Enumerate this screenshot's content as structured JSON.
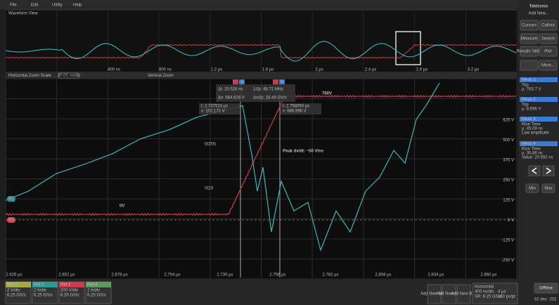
{
  "menu": [
    "File",
    "Edit",
    "Utility",
    "Help"
  ],
  "brand": "Tektronix",
  "overview": {
    "title": "Waveform View",
    "x_labels": [
      "400 ns",
      "800 ns",
      "1.2 µs",
      "1.6 µs",
      "2 µs",
      "2.4 µs",
      "2.8 µs",
      "3.2 µs"
    ]
  },
  "zoom_bar": {
    "scale_label": "Horizontal Zoom Scale",
    "scale_value": "20.00 ns/div",
    "vertical_label": "Vertical Zoom"
  },
  "plot": {
    "x_labels": [
      "2.626 µs",
      "2.652 µs",
      "2.678 µs",
      "2.704 µs",
      "2.730 µs",
      "2.756 µs",
      "2.782 µs",
      "2.808 µs",
      "2.834 µs",
      "2.860 µs"
    ],
    "y_labels": [
      "625 V",
      "500 V",
      "375 V",
      "250 V",
      "125 V",
      "0 V",
      "-125 V",
      "-250 V"
    ],
    "annotations": {
      "top": "760V",
      "current": "I(IZM)",
      "dvdt": "Peak dv/dt: ~50 V/ns",
      "vds": "VDS",
      "zero": "0V"
    },
    "cursor_a": "a",
    "cursor_b": "b",
    "readout": [
      "Δt: 20.526 ns",
      "1/Δt: 48.72 MHz",
      "Δv: 584.826 V",
      "Δv/Δt: 28.49 GV/s"
    ],
    "cursor_a_readout": [
      "t: 2.737524 µs",
      "v: 102.172 V"
    ],
    "cursor_b_readout": [
      "t: 2.758050 µs",
      "v: 686.998 V"
    ],
    "markers": [
      "R3",
      "R2"
    ]
  },
  "side": {
    "title": "Add New...",
    "buttons": [
      "Cursors",
      "Callout",
      "Measure",
      "Search",
      "Results Table",
      "Plot",
      "More..."
    ],
    "meas": [
      {
        "title": "Meas 1",
        "name": "Top",
        "value": "µ: 763.7 V"
      },
      {
        "title": "Meas 2",
        "name": "Top",
        "value": "µ: 8.596 V"
      },
      {
        "title": "Meas 3",
        "name": "Rise Time",
        "value": "µ: 45.09 ns",
        "note": "Low amplitude"
      },
      {
        "title": "Meas 4",
        "name": "Rise Time",
        "value": "µ: 35.86 ns",
        "note": "Value: 20.592 ns"
      }
    ],
    "nav": [
      "Min",
      "Max"
    ]
  },
  "bottom": {
    "refs": [
      {
        "name": "Ref 1",
        "lines": [
          "2 V/div",
          "6.25 GS/s"
        ]
      },
      {
        "name": "Ref 2",
        "lines": [
          "2 A/div",
          "6.25 GS/s"
        ]
      },
      {
        "name": "Ref 3",
        "lines": [
          "200 V/div",
          "6.25 GS/s"
        ]
      },
      {
        "name": "Ref 4",
        "lines": [
          "2 A/div",
          "6.25 GS/s"
        ]
      }
    ],
    "add": [
      "Add New Math",
      "Add New Ref",
      "Add New Bus"
    ],
    "horizontal": {
      "title": "Horizontal",
      "lines": [
        "400 ns/div",
        "SR: 6.25 GS/s",
        "4 µs",
        "160 ps/pt"
      ]
    },
    "offline": "Offline",
    "date": "02 dec. 202"
  }
}
